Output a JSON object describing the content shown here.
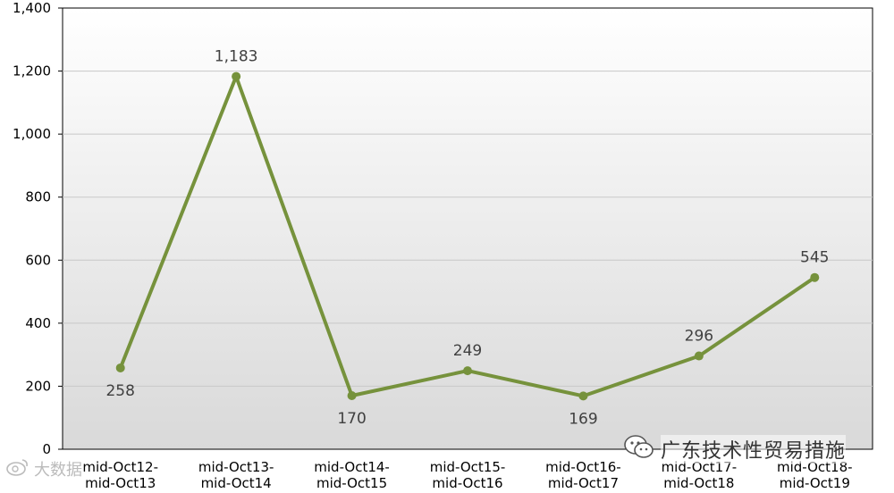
{
  "chart_data": {
    "type": "line",
    "categories": [
      [
        "mid-Oct12-",
        "mid-Oct13"
      ],
      [
        "mid-Oct13-",
        "mid-Oct14"
      ],
      [
        "mid-Oct14-",
        "mid-Oct15"
      ],
      [
        "mid-Oct15-",
        "mid-Oct16"
      ],
      [
        "mid-Oct16-",
        "mid-Oct17"
      ],
      [
        "mid-Oct17-",
        "mid-Oct18"
      ],
      [
        "mid-Oct18-",
        "mid-Oct19"
      ]
    ],
    "series": [
      {
        "values": [
          258,
          1183,
          170,
          249,
          169,
          296,
          545
        ]
      }
    ],
    "data_labels": [
      "258",
      "1,183",
      "170",
      "249",
      "169",
      "296",
      "545"
    ],
    "label_side": [
      "below",
      "above",
      "below",
      "above",
      "below",
      "above",
      "above"
    ],
    "y_ticks": [
      {
        "value": 0,
        "label": "0"
      },
      {
        "value": 200,
        "label": "200"
      },
      {
        "value": 400,
        "label": "400"
      },
      {
        "value": 600,
        "label": "600"
      },
      {
        "value": 800,
        "label": "800"
      },
      {
        "value": 1000,
        "label": "1,000"
      },
      {
        "value": 1200,
        "label": "1,200"
      },
      {
        "value": 1400,
        "label": "1,400"
      }
    ],
    "ylim": [
      0,
      1400
    ],
    "title": "",
    "xlabel": "",
    "ylabel": "",
    "grid": true,
    "legend": "none",
    "colors": {
      "line": "#76923c",
      "grid": "#c8c8c8",
      "axis": "#000000",
      "text": "#404040",
      "plot_bg_top": "#ffffff",
      "plot_bg_bottom": "#d9d9d9"
    }
  },
  "watermarks": {
    "right_text": "广东技术性贸易措施",
    "right_icon": "wechat-icon",
    "left_text": "大数据",
    "left_icon": "weibo-icon"
  }
}
